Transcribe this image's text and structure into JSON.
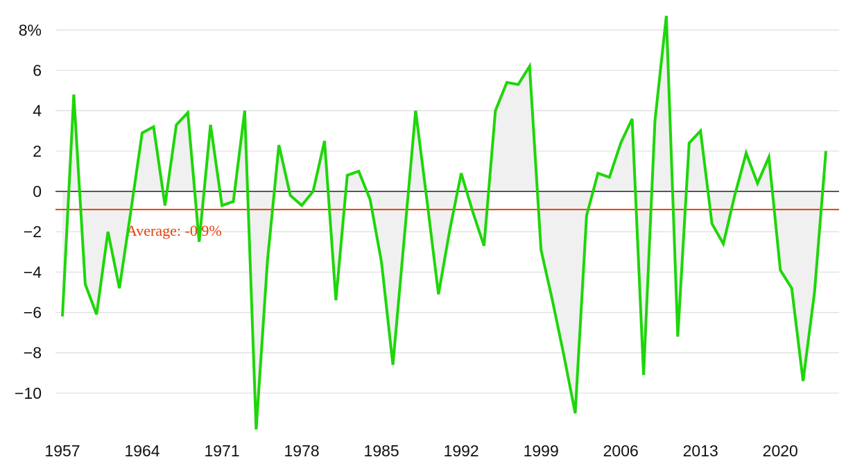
{
  "chart_data": {
    "type": "line",
    "x": [
      1957,
      1958,
      1959,
      1960,
      1961,
      1962,
      1963,
      1964,
      1965,
      1966,
      1967,
      1968,
      1969,
      1970,
      1971,
      1972,
      1973,
      1974,
      1975,
      1976,
      1977,
      1978,
      1979,
      1980,
      1981,
      1982,
      1983,
      1984,
      1985,
      1986,
      1987,
      1988,
      1989,
      1990,
      1991,
      1992,
      1993,
      1994,
      1995,
      1996,
      1997,
      1998,
      1999,
      2000,
      2001,
      2002,
      2003,
      2004,
      2005,
      2006,
      2007,
      2008,
      2009,
      2010,
      2011,
      2012,
      2013,
      2014,
      2015,
      2016,
      2017,
      2018,
      2019,
      2020,
      2021,
      2022,
      2023,
      2024
    ],
    "series": [
      {
        "color": "#1ed60a",
        "values": [
          -6.2,
          4.8,
          -4.6,
          -6.1,
          -2.0,
          -4.8,
          -1.0,
          2.9,
          3.2,
          -0.7,
          3.3,
          3.9,
          -2.5,
          3.3,
          -0.7,
          -0.5,
          4.0,
          -11.8,
          -3.4,
          2.3,
          -0.2,
          -0.7,
          0.0,
          2.5,
          -5.4,
          0.8,
          1.0,
          -0.4,
          -3.5,
          -8.6,
          -2.3,
          4.0,
          -0.5,
          -5.1,
          -1.9,
          0.9,
          -1.0,
          -2.7,
          4.0,
          5.4,
          5.3,
          6.2,
          -2.9,
          -5.4,
          -8.1,
          -11.0,
          -1.2,
          0.9,
          0.7,
          2.4,
          3.6,
          -9.1,
          3.5,
          8.7,
          -7.2,
          2.4,
          3.0,
          -1.6,
          -2.6,
          -0.2,
          1.9,
          0.4,
          1.7,
          -3.9,
          -4.8,
          -9.4,
          -5.0,
          2.0
        ]
      }
    ],
    "area_color": "#f0f0f0",
    "average": -0.9,
    "average_label": "Average: -0.9%",
    "average_color": "#e8400c",
    "xlim": [
      1957,
      2024
    ],
    "xticks": [
      1957,
      1964,
      1971,
      1978,
      1985,
      1992,
      1999,
      2006,
      2013,
      2020
    ],
    "ylim": [
      -12,
      8.8
    ],
    "yticks": [
      {
        "value": 8,
        "label": "8%"
      },
      6,
      4,
      2,
      0,
      {
        "value": -2,
        "label": "−2"
      },
      {
        "value": -4,
        "label": "−4"
      },
      {
        "value": -6,
        "label": "−6"
      },
      {
        "value": -8,
        "label": "−8"
      },
      {
        "value": -10,
        "label": "−10"
      }
    ],
    "grid": true
  }
}
